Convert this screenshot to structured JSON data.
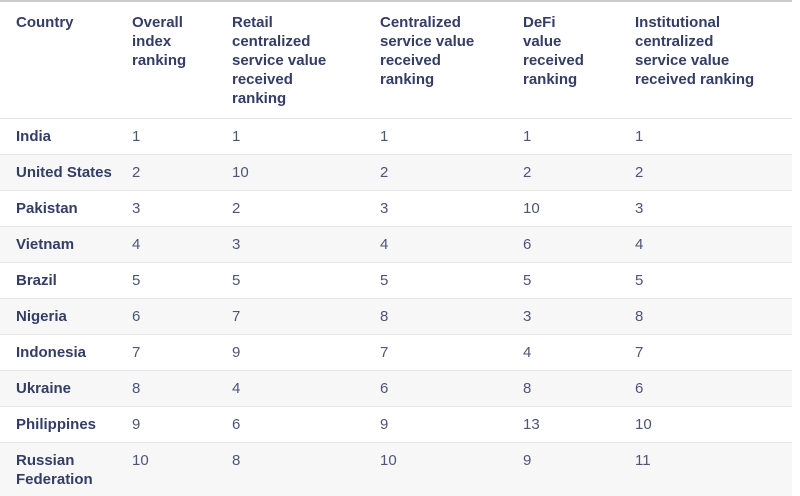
{
  "chart_data": {
    "type": "table",
    "columns": [
      "Country",
      "Overall index ranking",
      "Retail centralized service value received ranking",
      "Centralized service value received ranking",
      "DeFi value received ranking",
      "Institutional centralized service value received ranking"
    ],
    "rows": [
      {
        "country": "India",
        "values": [
          "1",
          "1",
          "1",
          "1",
          "1"
        ]
      },
      {
        "country": "United States",
        "values": [
          "2",
          "10",
          "2",
          "2",
          "2"
        ]
      },
      {
        "country": "Pakistan",
        "values": [
          "3",
          "2",
          "3",
          "10",
          "3"
        ]
      },
      {
        "country": "Vietnam",
        "values": [
          "4",
          "3",
          "4",
          "6",
          "4"
        ]
      },
      {
        "country": "Brazil",
        "values": [
          "5",
          "5",
          "5",
          "5",
          "5"
        ]
      },
      {
        "country": "Nigeria",
        "values": [
          "6",
          "7",
          "8",
          "3",
          "8"
        ]
      },
      {
        "country": "Indonesia",
        "values": [
          "7",
          "9",
          "7",
          "4",
          "7"
        ]
      },
      {
        "country": "Ukraine",
        "values": [
          "8",
          "4",
          "6",
          "8",
          "6"
        ]
      },
      {
        "country": "Philippines",
        "values": [
          "9",
          "6",
          "9",
          "13",
          "10"
        ]
      },
      {
        "country": "Russian Federation",
        "values": [
          "10",
          "8",
          "10",
          "9",
          "11"
        ]
      }
    ],
    "layout": {
      "header_position": "top",
      "row_striping": "even-rows-shaded",
      "grid": "horizontal-only"
    }
  },
  "colors": {
    "header_text": "#333d66",
    "country_text": "#333d66",
    "value_text": "#4c5676",
    "row_alt_bg": "#f7f7f8",
    "row_border": "#e6e6ea",
    "top_border": "#caccd2",
    "background": "#ffffff"
  }
}
